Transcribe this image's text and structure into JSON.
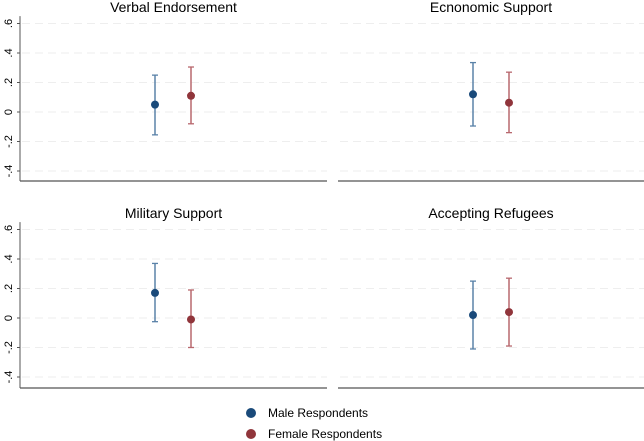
{
  "chart_data": [
    {
      "type": "scatter",
      "title": "Verbal Endorsement",
      "ylim": [
        -0.45,
        0.65
      ],
      "yticks": [
        -0.4,
        -0.2,
        0,
        0.2,
        0.4,
        0.6
      ],
      "ytick_labels": [
        "-.4",
        "-.2",
        "0",
        ".2",
        ".4",
        ".6"
      ],
      "grid": true,
      "series": [
        {
          "name": "Male Respondents",
          "estimate": 0.05,
          "ci": [
            -0.155,
            0.25
          ]
        },
        {
          "name": "Female Respondents",
          "estimate": 0.11,
          "ci": [
            -0.08,
            0.305
          ]
        }
      ]
    },
    {
      "type": "scatter",
      "title": "Ecnonomic Support",
      "ylim": [
        -0.45,
        0.65
      ],
      "yticks": [
        -0.4,
        -0.2,
        0,
        0.2,
        0.4,
        0.6
      ],
      "grid": true,
      "series": [
        {
          "name": "Male Respondents",
          "estimate": 0.12,
          "ci": [
            -0.095,
            0.335
          ]
        },
        {
          "name": "Female Respondents",
          "estimate": 0.063,
          "ci": [
            -0.14,
            0.27
          ]
        }
      ]
    },
    {
      "type": "scatter",
      "title": "Military Support",
      "ylim": [
        -0.45,
        0.65
      ],
      "yticks": [
        -0.4,
        -0.2,
        0,
        0.2,
        0.4,
        0.6
      ],
      "ytick_labels": [
        "-.4",
        "-.2",
        "0",
        ".2",
        ".4",
        ".6"
      ],
      "grid": true,
      "series": [
        {
          "name": "Male Respondents",
          "estimate": 0.17,
          "ci": [
            -0.025,
            0.37
          ]
        },
        {
          "name": "Female Respondents",
          "estimate": -0.01,
          "ci": [
            -0.2,
            0.19
          ]
        }
      ]
    },
    {
      "type": "scatter",
      "title": "Accepting Refugees",
      "ylim": [
        -0.45,
        0.65
      ],
      "yticks": [
        -0.4,
        -0.2,
        0,
        0.2,
        0.4,
        0.6
      ],
      "grid": true,
      "series": [
        {
          "name": "Male Respondents",
          "estimate": 0.02,
          "ci": [
            -0.21,
            0.25
          ]
        },
        {
          "name": "Female Respondents",
          "estimate": 0.04,
          "ci": [
            -0.19,
            0.27
          ]
        }
      ]
    }
  ],
  "legend": {
    "position": "bottom",
    "items": [
      {
        "label": "Male Respondents",
        "color": "#1a4a7a"
      },
      {
        "label": "Female Respondents",
        "color": "#90353b"
      }
    ]
  },
  "colors": {
    "male": "#1a4a7a",
    "male_ci": "#5a82a8",
    "female": "#90353b",
    "female_ci": "#b8686e"
  }
}
